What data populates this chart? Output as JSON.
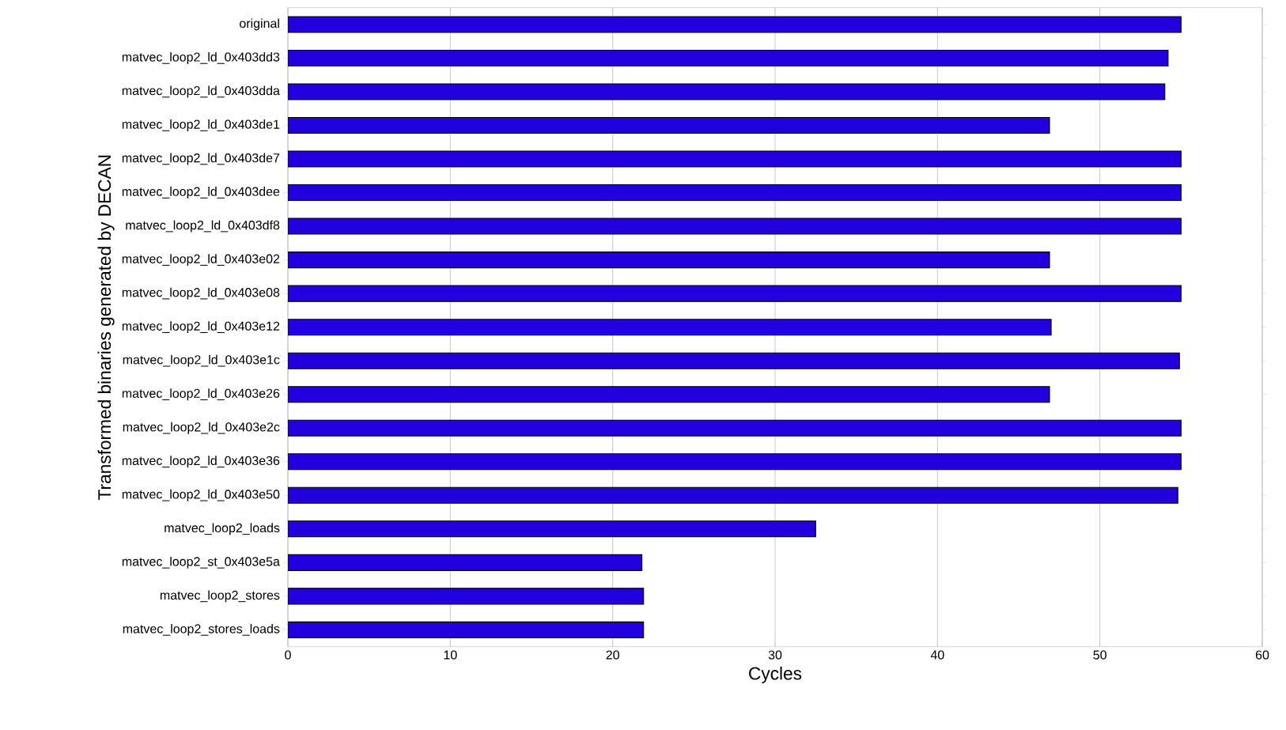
{
  "chart_data": {
    "type": "bar",
    "orientation": "horizontal",
    "xlabel": "Cycles",
    "ylabel": "Transformed binaries generated by DECAN",
    "categories": [
      "original",
      "matvec_loop2_ld_0x403dd3",
      "matvec_loop2_ld_0x403dda",
      "matvec_loop2_ld_0x403de1",
      "matvec_loop2_ld_0x403de7",
      "matvec_loop2_ld_0x403dee",
      "matvec_loop2_ld_0x403df8",
      "matvec_loop2_ld_0x403e02",
      "matvec_loop2_ld_0x403e08",
      "matvec_loop2_ld_0x403e12",
      "matvec_loop2_ld_0x403e1c",
      "matvec_loop2_ld_0x403e26",
      "matvec_loop2_ld_0x403e2c",
      "matvec_loop2_ld_0x403e36",
      "matvec_loop2_ld_0x403e50",
      "matvec_loop2_loads",
      "matvec_loop2_st_0x403e5a",
      "matvec_loop2_stores",
      "matvec_loop2_stores_loads"
    ],
    "values": [
      55.0,
      54.2,
      54.0,
      46.9,
      55.0,
      55.0,
      55.0,
      46.9,
      55.0,
      47.0,
      54.9,
      46.9,
      55.0,
      55.0,
      54.8,
      32.5,
      21.8,
      21.9,
      21.9
    ],
    "color": "#2200dd",
    "xlim": [
      0,
      60
    ],
    "xticks": [
      0,
      10,
      20,
      30,
      40,
      50,
      60
    ],
    "grid": "x"
  }
}
